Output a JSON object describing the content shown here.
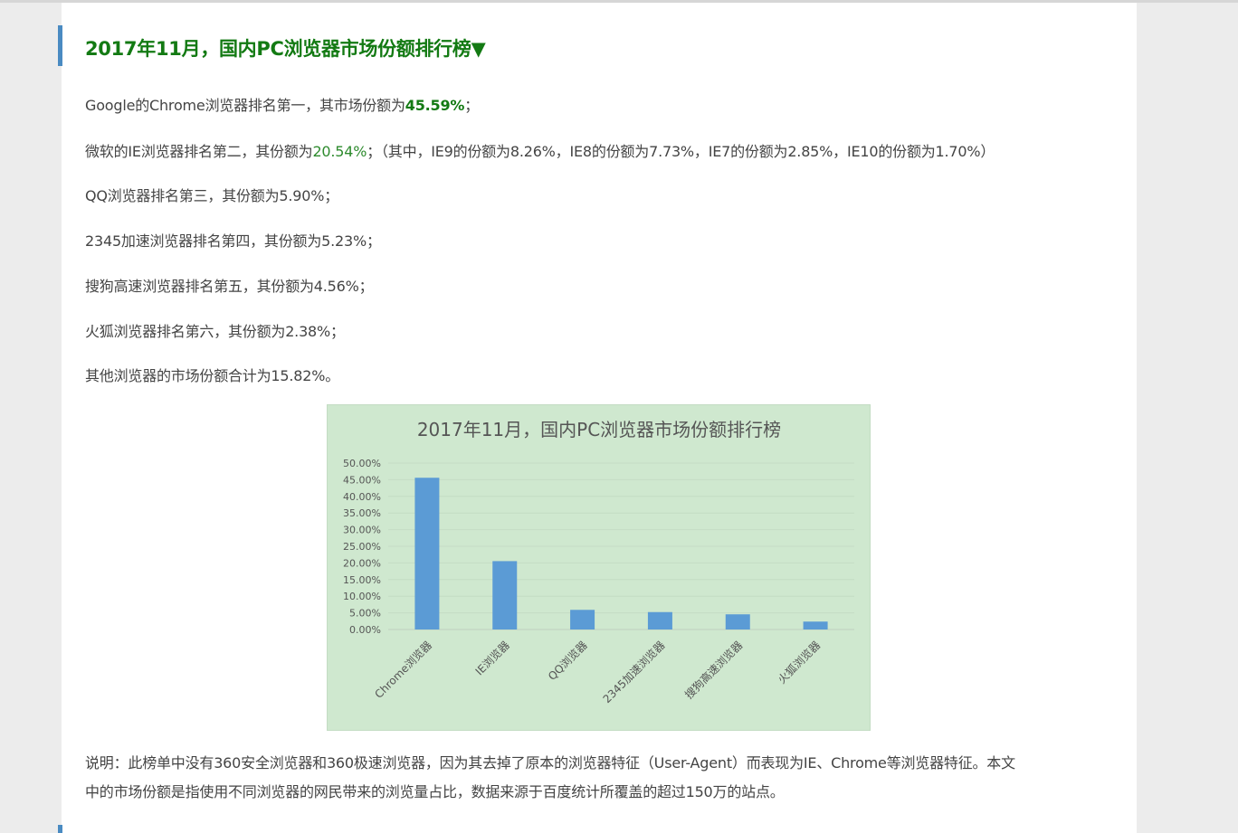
{
  "article": {
    "heading": "2017年11月，国内PC浏览器市场份额排行榜▼",
    "lines": {
      "chrome_prefix": "Google的Chrome浏览器排名第一，其市场份额为",
      "chrome_value": "45.59%",
      "chrome_suffix": "；",
      "ie_prefix": "微软的IE浏览器排名第二，其份额为",
      "ie_value": "20.54%",
      "ie_suffix": "；（其中，IE9的份额为8.26%，IE8的份额为7.73%，IE7的份额为2.85%，IE10的份额为1.70%）",
      "qq": "QQ浏览器排名第三，其份额为5.90%；",
      "b2345": "2345加速浏览器排名第四，其份额为5.23%；",
      "sogou": "搜狗高速浏览器排名第五，其份额为4.56%；",
      "firefox": "火狐浏览器排名第六，其份额为2.38%；",
      "others": "其他浏览器的市场份额合计为15.82%。"
    },
    "note_line1": "说明：此榜单中没有360安全浏览器和360极速浏览器，因为其去掉了原本的浏览器特征（User-Agent）而表现为IE、Chrome等浏览器特征。本文",
    "note_line2": "中的市场份额是指使用不同浏览器的网民带来的浏览量占比，数据来源于百度统计所覆盖的超过150万的站点。"
  },
  "colors": {
    "heading_green": "#137a13",
    "accent_bar": "#4a8bc2",
    "chart_bg": "#cfe8cf",
    "bar_fill": "#5b9bd5"
  },
  "chart_data": {
    "type": "bar",
    "title": "2017年11月，国内PC浏览器市场份额排行榜",
    "categories": [
      "Chrome浏览器",
      "IE浏览器",
      "QQ浏览器",
      "2345加速浏览器",
      "搜狗高速浏览器",
      "火狐浏览器"
    ],
    "values": [
      45.59,
      20.54,
      5.9,
      5.23,
      4.56,
      2.38
    ],
    "ylim": [
      0,
      50
    ],
    "yticks": [
      "0.00%",
      "5.00%",
      "10.00%",
      "15.00%",
      "20.00%",
      "25.00%",
      "30.00%",
      "35.00%",
      "40.00%",
      "45.00%",
      "50.00%"
    ],
    "grid": true,
    "legend": "none"
  }
}
